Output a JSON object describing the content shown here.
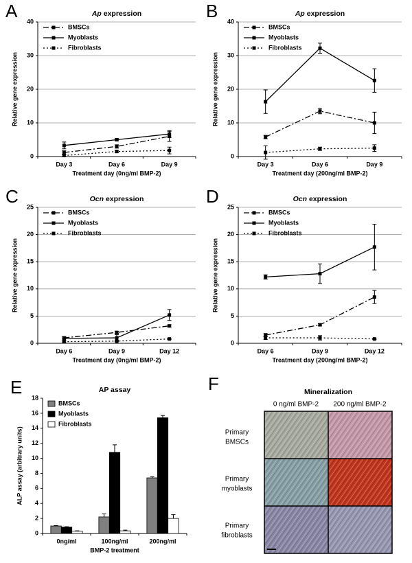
{
  "chart_data": [
    {
      "type": "line",
      "panel_label": "A",
      "title_italic": "Ap",
      "title": "expression",
      "categories": [
        "Day 3",
        "Day 6",
        "Day 9"
      ],
      "x_label": "Treatment day (0ng/ml BMP-2)",
      "y_label": "Relative gene expression",
      "ylim": [
        0,
        40
      ],
      "yticks": [
        0,
        10,
        20,
        30,
        40
      ],
      "grid": true,
      "legend": "upper left",
      "series": [
        {
          "name": "BMSCs",
          "color": "#000000",
          "line_style": "dashdot",
          "values": [
            1.2,
            3.0,
            6.0
          ],
          "errors": [
            0.5,
            0.5,
            1.5
          ]
        },
        {
          "name": "Myoblasts",
          "color": "#000000",
          "line_style": "solid",
          "values": [
            3.3,
            5.0,
            6.7
          ],
          "errors": [
            1.0,
            0.3,
            1.0
          ]
        },
        {
          "name": "Fibroblasts",
          "color": "#000000",
          "line_style": "dotted",
          "values": [
            0.3,
            1.5,
            1.8
          ],
          "errors": [
            0.2,
            0.3,
            1.0
          ]
        }
      ]
    },
    {
      "type": "line",
      "panel_label": "B",
      "title_italic": "Ap",
      "title": "expression",
      "categories": [
        "Day 3",
        "Day 6",
        "Day 9"
      ],
      "x_label": "Treatment day (200ng/ml BMP-2)",
      "y_label": "Relative gene expression",
      "ylim": [
        0,
        40
      ],
      "yticks": [
        0,
        10,
        20,
        30,
        40
      ],
      "grid": true,
      "legend": "upper left",
      "series": [
        {
          "name": "BMSCs",
          "color": "#000000",
          "line_style": "dashdot",
          "values": [
            5.8,
            13.5,
            10.0
          ],
          "errors": [
            0.5,
            0.8,
            3.2
          ]
        },
        {
          "name": "Myoblasts",
          "color": "#000000",
          "line_style": "solid",
          "values": [
            16.3,
            32.2,
            22.6
          ],
          "errors": [
            3.5,
            1.5,
            3.5
          ]
        },
        {
          "name": "Fibroblasts",
          "color": "#000000",
          "line_style": "dotted",
          "values": [
            1.2,
            2.3,
            2.5
          ],
          "errors": [
            2.0,
            0.5,
            1.0
          ]
        }
      ]
    },
    {
      "type": "line",
      "panel_label": "C",
      "title_italic": "Ocn",
      "title": "expression",
      "categories": [
        "Day 6",
        "Day 9",
        "Day 12"
      ],
      "x_label": "Treatment day (0ng/ml BMP-2)",
      "y_label": "Relative gene expression",
      "ylim": [
        0,
        25
      ],
      "yticks": [
        0,
        5,
        10,
        15,
        20,
        25
      ],
      "grid": true,
      "legend": "upper left",
      "series": [
        {
          "name": "BMSCs",
          "color": "#000000",
          "line_style": "dashdot",
          "values": [
            1.0,
            2.0,
            3.2
          ],
          "errors": [
            0.2,
            0.2,
            0.2
          ]
        },
        {
          "name": "Myoblasts",
          "color": "#000000",
          "line_style": "solid",
          "values": [
            0.9,
            1.0,
            5.2
          ],
          "errors": [
            0.3,
            0.6,
            1.0
          ]
        },
        {
          "name": "Fibroblasts",
          "color": "#000000",
          "line_style": "dotted",
          "values": [
            0.3,
            0.4,
            0.8
          ],
          "errors": [
            0.1,
            0.1,
            0.1
          ]
        }
      ]
    },
    {
      "type": "line",
      "panel_label": "D",
      "title_italic": "Ocn",
      "title": "expression",
      "categories": [
        "Day 6",
        "Day 9",
        "Day 12"
      ],
      "x_label": "Treatment day (200ng/ml BMP-2)",
      "y_label": "Relative gene expression",
      "ylim": [
        0,
        25
      ],
      "yticks": [
        0,
        5,
        10,
        15,
        20,
        25
      ],
      "grid": true,
      "legend": "upper left",
      "series": [
        {
          "name": "BMSCs",
          "color": "#000000",
          "line_style": "dashdot",
          "values": [
            1.5,
            3.4,
            8.5
          ],
          "errors": [
            0.3,
            0.2,
            1.2
          ]
        },
        {
          "name": "Myoblasts",
          "color": "#000000",
          "line_style": "solid",
          "values": [
            12.2,
            12.8,
            17.7
          ],
          "errors": [
            0.4,
            1.8,
            4.2
          ]
        },
        {
          "name": "Fibroblasts",
          "color": "#000000",
          "line_style": "dotted",
          "values": [
            1.0,
            1.0,
            0.8
          ],
          "errors": [
            0.3,
            0.4,
            0.1
          ]
        }
      ]
    },
    {
      "type": "bar",
      "panel_label": "E",
      "title": "AP assay",
      "categories": [
        "0ng/ml",
        "100ng/ml",
        "200ng/ml"
      ],
      "x_label": "BMP-2 treatment",
      "y_label": "ALP assay (arbitrary units)",
      "ylim": [
        0,
        18
      ],
      "yticks": [
        0,
        2,
        4,
        6,
        8,
        10,
        12,
        14,
        16,
        18
      ],
      "grid": false,
      "legend": "upper left",
      "series": [
        {
          "name": "BMSCs",
          "color": "#808080",
          "values": [
            1.0,
            2.2,
            7.4
          ],
          "errors": [
            0.05,
            0.4,
            0.15
          ]
        },
        {
          "name": "Myoblasts",
          "color": "#000000",
          "values": [
            0.85,
            10.8,
            15.4
          ],
          "errors": [
            0.05,
            1.0,
            0.3
          ]
        },
        {
          "name": "Fibroblasts",
          "color": "#ffffff",
          "values": [
            0.3,
            0.35,
            2.0
          ],
          "errors": [
            0.05,
            0.1,
            0.5
          ]
        }
      ]
    }
  ],
  "figure_f": {
    "panel_label": "F",
    "title": "Mineralization",
    "columns": [
      "0 ng/ml BMP-2",
      "200 ng/ml BMP-2"
    ],
    "rows": [
      [
        "Primary",
        "BMSCs"
      ],
      [
        "Primary",
        "myoblasts"
      ],
      [
        "Primary",
        "fibroblasts"
      ]
    ]
  }
}
